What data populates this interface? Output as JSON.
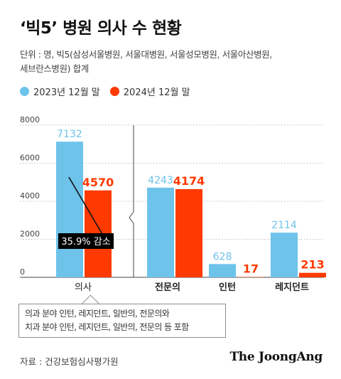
{
  "title": "‘빅5’ 병원 의사 수 현황",
  "unit_line1": "단위 : 명, 빅5(삼성서울병원, 서울대병원, 서울성모병원, 서울아산병원,",
  "unit_line2": "세브란스병원) 합계",
  "colors": {
    "series_2023": "#6ec3ea",
    "series_2024": "#ff3a00",
    "arrow": "#111111",
    "callout_bg": "#000000"
  },
  "chart_data": {
    "type": "bar",
    "categories": [
      "의사",
      "전문의",
      "인턴",
      "레지던트"
    ],
    "series": [
      {
        "name": "2023년 12월 말",
        "values": [
          7132,
          4243,
          628,
          2114
        ]
      },
      {
        "name": "2024년 12월 말",
        "values": [
          4570,
          4174,
          17,
          213
        ]
      }
    ],
    "y_ticks": [
      "8000",
      "6000",
      "4000",
      "2000",
      "0"
    ],
    "left_panel": {
      "ylim": [
        0,
        8000
      ]
    },
    "right_panel": {
      "ylim": [
        0,
        7200
      ]
    },
    "legend": "top-left",
    "annotation": "35.9% 감소",
    "grid": "dotted-horizontal"
  },
  "note_line1": "의과 분야 인턴, 레지던트, 일반의, 전문의와",
  "note_line2": "치과 분야 인턴, 레지던트, 일반의, 전문의 등 포함",
  "source": "자료 : 건강보험심사평가원",
  "brand": "The JoongAng"
}
